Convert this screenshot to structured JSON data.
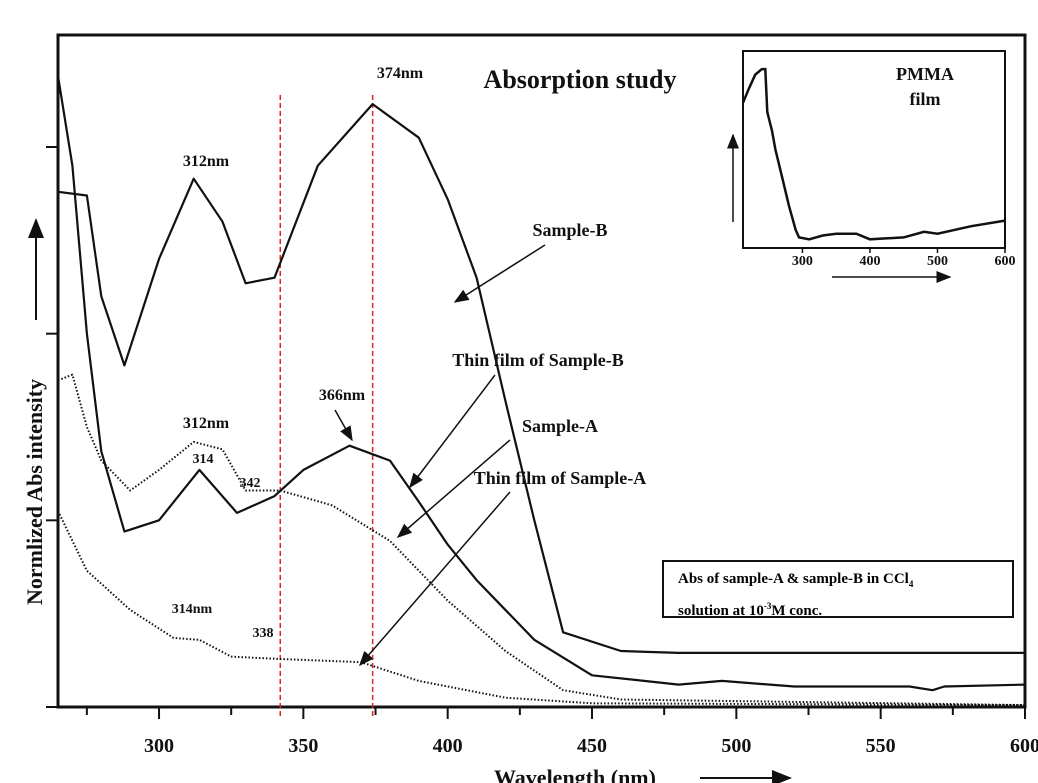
{
  "chart_data": {
    "type": "line",
    "title": "Absorption study",
    "xlabel": "Wavelength (nm)",
    "ylabel": "Normlized Abs  intensity",
    "xlim": [
      265,
      600
    ],
    "ylim": [
      0,
      3.6
    ],
    "xticks": [
      300,
      350,
      400,
      450,
      500,
      550,
      600
    ],
    "yticks": [
      0,
      1,
      2,
      3
    ],
    "series": [
      {
        "name": "Sample-B",
        "style": "solid",
        "x": [
          265,
          275,
          280,
          288,
          300,
          312,
          322,
          330,
          340,
          355,
          374,
          390,
          400,
          410,
          420,
          430,
          440,
          460,
          480,
          600
        ],
        "y": [
          2.76,
          2.74,
          2.2,
          1.83,
          2.4,
          2.83,
          2.6,
          2.27,
          2.3,
          2.9,
          3.23,
          3.05,
          2.72,
          2.3,
          1.64,
          1.0,
          0.4,
          0.3,
          0.29,
          0.29
        ]
      },
      {
        "name": "Sample-A",
        "style": "solid",
        "x": [
          265,
          270,
          275,
          280,
          288,
          300,
          314,
          327,
          340,
          350,
          366,
          380,
          390,
          400,
          410,
          430,
          450,
          480,
          495,
          520,
          560,
          568,
          572,
          600
        ],
        "y": [
          3.38,
          2.9,
          2.0,
          1.37,
          0.94,
          1.0,
          1.27,
          1.04,
          1.13,
          1.27,
          1.4,
          1.32,
          1.1,
          0.87,
          0.68,
          0.36,
          0.17,
          0.12,
          0.14,
          0.11,
          0.11,
          0.09,
          0.11,
          0.12
        ]
      },
      {
        "name": "Thin film of Sample-B",
        "style": "dotted",
        "x": [
          265,
          270,
          275,
          280,
          290,
          300,
          312,
          322,
          330,
          342,
          360,
          380,
          400,
          420,
          440,
          460,
          600
        ],
        "y": [
          1.75,
          1.78,
          1.5,
          1.32,
          1.16,
          1.27,
          1.42,
          1.38,
          1.16,
          1.16,
          1.08,
          0.89,
          0.57,
          0.3,
          0.09,
          0.04,
          0.01
        ]
      },
      {
        "name": "Thin film of Sample-A",
        "style": "dotted",
        "x": [
          265,
          275,
          290,
          305,
          314,
          325,
          338,
          370,
          390,
          420,
          450,
          600
        ],
        "y": [
          1.05,
          0.73,
          0.52,
          0.37,
          0.36,
          0.27,
          0.26,
          0.24,
          0.14,
          0.05,
          0.02,
          0.01
        ]
      }
    ],
    "vlines": [
      342,
      374
    ],
    "annotations": [
      "374nm",
      "312nm",
      "Sample-B",
      "Thin film of Sample-B",
      "366nm",
      "312nm",
      "314",
      "342",
      "Sample-A",
      "Thin film of Sample-A",
      "314nm",
      "338"
    ],
    "inset": {
      "title_line1": "PMMA",
      "title_line2": "film",
      "xticks": [
        300,
        400,
        500,
        600
      ],
      "xlim": [
        212,
        600
      ],
      "ylim": [
        0,
        1
      ],
      "x": [
        212,
        220,
        230,
        240,
        245,
        248,
        255,
        260,
        270,
        280,
        290,
        295,
        310,
        330,
        350,
        380,
        400,
        450,
        480,
        500,
        550,
        600
      ],
      "y": [
        0.75,
        0.82,
        0.9,
        0.93,
        0.93,
        0.7,
        0.6,
        0.5,
        0.35,
        0.2,
        0.07,
        0.03,
        0.02,
        0.04,
        0.05,
        0.05,
        0.02,
        0.03,
        0.06,
        0.05,
        0.09,
        0.12
      ]
    },
    "legend_box": {
      "line1": "Abs of sample-A & sample-B in CCl",
      "line1_sub": "4",
      "line2a": "solution at 10",
      "line2_sup": "-3",
      "line2b": "M conc."
    }
  }
}
